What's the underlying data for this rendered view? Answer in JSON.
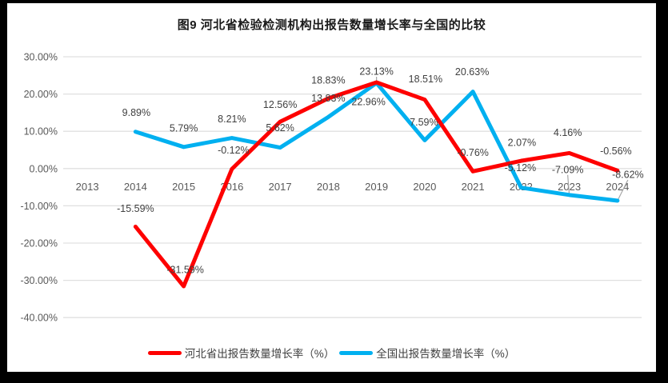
{
  "colors": {
    "background": "#000000",
    "surface": "#ffffff",
    "grid": "#e0e0e0",
    "axis_text": "#595959",
    "data_label_text": "#404040",
    "leader_line": "#a6a6a6",
    "hebei_red": "#fe0000",
    "national_blue": "#00b0f0"
  },
  "chart_data": {
    "type": "line",
    "title": "图9 河北省检验检测机构出报告数量增长率与全国的比较",
    "categories": [
      "2013",
      "2014",
      "2015",
      "2016",
      "2017",
      "2018",
      "2019",
      "2020",
      "2021",
      "2022",
      "2023",
      "2024"
    ],
    "series": [
      {
        "name": "河北省出报告数量增长率（%）",
        "color": "#fe0000",
        "values": [
          null,
          -15.59,
          -31.59,
          -0.12,
          12.56,
          18.83,
          23.13,
          18.51,
          -0.76,
          2.07,
          4.16,
          -0.56
        ],
        "labels": [
          null,
          "-15.59%",
          "-31.59%",
          "-0.12%",
          "12.56%",
          "18.83%",
          "23.13%",
          "18.51%",
          "-0.76%",
          "2.07%",
          "4.16%",
          "-0.56%"
        ],
        "label_offsets": [
          null,
          [
            0,
            -23
          ],
          [
            2,
            -21
          ],
          [
            2,
            -24
          ],
          [
            0,
            -22
          ],
          [
            0,
            -23
          ],
          [
            0,
            -14
          ],
          [
            1,
            -26
          ],
          [
            0,
            -24
          ],
          [
            1,
            -23
          ],
          [
            -2,
            -26
          ],
          [
            -2,
            -25
          ]
        ]
      },
      {
        "name": "全国出报告数量增长率（%）",
        "color": "#00b0f0",
        "values": [
          null,
          9.89,
          5.79,
          8.21,
          5.62,
          13.83,
          22.96,
          7.59,
          20.63,
          -5.12,
          -7.09,
          -8.62
        ],
        "labels": [
          null,
          "9.89%",
          "5.79%",
          "8.21%",
          "5.62%",
          "13.83%",
          "22.96%",
          "7.59%",
          "20.63%",
          "-5.12%",
          "-7.09%",
          "-8.62%"
        ],
        "label_offsets": [
          null,
          [
            1,
            -24
          ],
          [
            0,
            -24
          ],
          [
            0,
            -24
          ],
          [
            0,
            -25
          ],
          [
            0,
            -24
          ],
          [
            -10,
            23
          ],
          [
            -1,
            -23
          ],
          [
            -1,
            -25
          ],
          [
            -1,
            -25
          ],
          [
            -2,
            -32
          ],
          [
            13,
            -33
          ]
        ]
      }
    ],
    "y_ticks": [
      {
        "value": 30,
        "label": "30.00%"
      },
      {
        "value": 20,
        "label": "20.00%"
      },
      {
        "value": 10,
        "label": "10.00%"
      },
      {
        "value": 0,
        "label": "0.00%"
      },
      {
        "value": -10,
        "label": "-10.00%"
      },
      {
        "value": -20,
        "label": "-20.00%"
      },
      {
        "value": -30,
        "label": "-30.00%"
      },
      {
        "value": -40,
        "label": "-40.00%"
      }
    ],
    "ylim": [
      -40,
      30
    ],
    "grid": true,
    "legend_position": "bottom",
    "leaders": [
      {
        "series": 0,
        "index": 6
      },
      {
        "series": 1,
        "index": 10
      },
      {
        "series": 1,
        "index": 11
      }
    ]
  }
}
